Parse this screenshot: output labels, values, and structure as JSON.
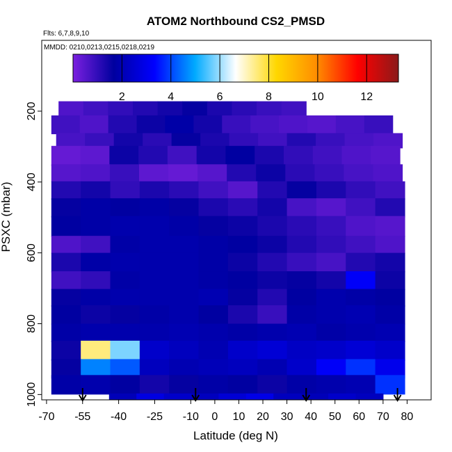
{
  "chart_data": {
    "type": "heatmap",
    "title": "ATOM2 Northbound CS2_PMSD",
    "flights_label": "Flts: 6,7,8,9,10",
    "dates_label": "MMDD: 0210,0213,0215,0218,0219",
    "xlabel": "Latitude (deg N)",
    "ylabel": "PSXC (mbar)",
    "xlim": [
      -72,
      90
    ],
    "ylim": [
      1015,
      0
    ],
    "x_ticks": [
      -70,
      -55,
      -40,
      -25,
      -10,
      0,
      10,
      20,
      30,
      40,
      50,
      60,
      70,
      80
    ],
    "y_ticks": [
      200,
      400,
      600,
      800,
      1000
    ],
    "colorbar": {
      "min": 0,
      "max": 13.3,
      "ticks": [
        2,
        4,
        6,
        8,
        10,
        12
      ],
      "colors": [
        "#7b20e0",
        "#00009f",
        "#0000ff",
        "#00aaff",
        "#ffffff",
        "#ffd700",
        "#ff8c00",
        "#ff0000",
        "#8b1a1a"
      ]
    },
    "profile_markers_lat": [
      -55,
      -8,
      38,
      76
    ],
    "altitude_bins": [
      {
        "p_top": 172,
        "p_bot": 225,
        "lat_min": -65,
        "lat_max": 38,
        "values": [
          0.6,
          0.8,
          1.0,
          1.2,
          1.4,
          1.6,
          1.3,
          1.1,
          0.9,
          0.8
        ]
      },
      {
        "p_top": 212,
        "p_bot": 265,
        "lat_min": -68,
        "lat_max": 74,
        "values": [
          0.8,
          0.6,
          1.2,
          1.5,
          1.8,
          1.4,
          0.9,
          0.7,
          0.6,
          0.5,
          0.7,
          0.9
        ]
      },
      {
        "p_top": 262,
        "p_bot": 305,
        "lat_min": -66,
        "lat_max": 78,
        "values": [
          0.7,
          0.9,
          1.4,
          1.1,
          1.6,
          1.3,
          1.0,
          0.8,
          1.2,
          0.9,
          0.7,
          0.6
        ]
      },
      {
        "p_top": 298,
        "p_bot": 355,
        "lat_min": -68,
        "lat_max": 77,
        "values": [
          0.3,
          0.4,
          1.5,
          1.2,
          0.8,
          1.4,
          1.7,
          1.3,
          1.0,
          0.8,
          0.6,
          0.5
        ]
      },
      {
        "p_top": 350,
        "p_bot": 400,
        "lat_min": -68,
        "lat_max": 78,
        "values": [
          0.5,
          0.6,
          0.9,
          0.4,
          0.3,
          0.5,
          1.2,
          1.5,
          1.1,
          0.9,
          0.7,
          0.6
        ]
      },
      {
        "p_top": 398,
        "p_bot": 450,
        "lat_min": -68,
        "lat_max": 79,
        "values": [
          1.2,
          1.4,
          1.0,
          1.3,
          1.1,
          0.8,
          0.5,
          1.2,
          1.6,
          1.3,
          1.0,
          0.8
        ]
      },
      {
        "p_top": 446,
        "p_bot": 500,
        "lat_min": -68,
        "lat_max": 79,
        "values": [
          1.6,
          1.8,
          1.7,
          1.8,
          1.6,
          1.3,
          1.1,
          1.4,
          0.7,
          0.5,
          0.8,
          1.2
        ]
      },
      {
        "p_top": 496,
        "p_bot": 555,
        "lat_min": -68,
        "lat_max": 79,
        "values": [
          1.7,
          1.8,
          1.9,
          1.9,
          1.8,
          1.6,
          1.5,
          1.3,
          1.1,
          0.9,
          0.6,
          0.5
        ]
      },
      {
        "p_top": 552,
        "p_bot": 602,
        "lat_min": -68,
        "lat_max": 79,
        "values": [
          0.6,
          0.8,
          1.8,
          1.9,
          1.9,
          1.8,
          1.7,
          1.5,
          1.2,
          1.0,
          0.8,
          0.6
        ]
      },
      {
        "p_top": 600,
        "p_bot": 655,
        "lat_min": -68,
        "lat_max": 79,
        "values": [
          1.3,
          1.8,
          1.9,
          1.9,
          1.9,
          1.8,
          1.5,
          1.2,
          0.9,
          0.7,
          1.2,
          1.4
        ]
      },
      {
        "p_top": 652,
        "p_bot": 705,
        "lat_min": -68,
        "lat_max": 79,
        "values": [
          0.8,
          1.0,
          1.8,
          1.9,
          1.9,
          1.8,
          1.7,
          1.5,
          1.6,
          1.4,
          3.2,
          1.5
        ]
      },
      {
        "p_top": 702,
        "p_bot": 752,
        "lat_min": -68,
        "lat_max": 79,
        "values": [
          1.6,
          1.8,
          1.9,
          1.9,
          1.9,
          2.0,
          1.6,
          1.2,
          1.7,
          1.9,
          1.8,
          1.7
        ]
      },
      {
        "p_top": 748,
        "p_bot": 802,
        "lat_min": -68,
        "lat_max": 79,
        "values": [
          1.7,
          1.5,
          1.6,
          1.8,
          1.9,
          1.7,
          1.3,
          0.9,
          1.8,
          1.9,
          2.0,
          1.8
        ]
      },
      {
        "p_top": 800,
        "p_bot": 852,
        "lat_min": -68,
        "lat_max": 79,
        "values": [
          1.8,
          1.9,
          1.9,
          1.9,
          2.0,
          1.9,
          1.8,
          1.9,
          2.0,
          1.8,
          1.9,
          2.0
        ]
      },
      {
        "p_top": 848,
        "p_bot": 905,
        "lat_min": -68,
        "lat_max": 79,
        "values": [
          1.5,
          7.5,
          5.8,
          2.4,
          2.2,
          2.0,
          2.4,
          2.6,
          2.3,
          2.4,
          2.6,
          2.4
        ]
      },
      {
        "p_top": 900,
        "p_bot": 955,
        "lat_min": -68,
        "lat_max": 79,
        "values": [
          1.6,
          4.6,
          4.2,
          2.2,
          2.0,
          2.1,
          2.2,
          2.0,
          2.4,
          3.2,
          3.8,
          3.0
        ]
      },
      {
        "p_top": 945,
        "p_bot": 1000,
        "lat_min": -68,
        "lat_max": 79,
        "values": [
          1.8,
          1.9,
          1.7,
          1.4,
          1.6,
          1.8,
          1.7,
          1.5,
          1.8,
          1.9,
          2.0,
          3.8
        ]
      },
      {
        "p_top": 997,
        "p_bot": 1050,
        "lat_min": -44,
        "lat_max": 70,
        "values": [
          2.1,
          2.8,
          2.4,
          2.2,
          2.6,
          2.9,
          2.2,
          2.1,
          2.4,
          2.2
        ]
      }
    ]
  }
}
